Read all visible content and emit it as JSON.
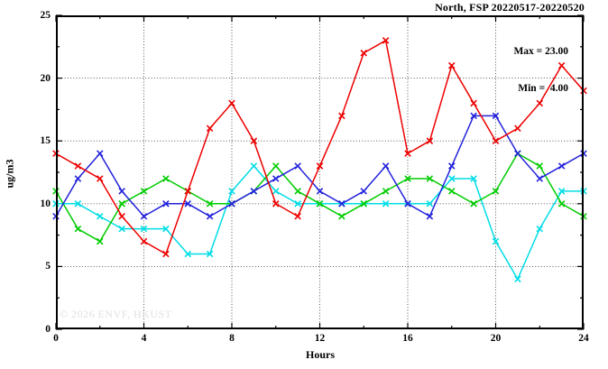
{
  "title": "North, FSP 20220517-20220520",
  "annotation": {
    "max_label": "Max = 23.00",
    "min_label": "Min =  4.00"
  },
  "watermark": "© 2026 ENVF, HKUST",
  "axes": {
    "xlabel": "Hours",
    "ylabel": "ug/m3",
    "x_tick_labels": [
      "0",
      "4",
      "8",
      "12",
      "16",
      "20",
      "24"
    ],
    "y_tick_labels": [
      "0",
      "5",
      "10",
      "15",
      "20",
      "25"
    ]
  },
  "chart_data": {
    "type": "line",
    "title": "North, FSP 20220517-20220520",
    "xlabel": "Hours",
    "ylabel": "ug/m3",
    "xlim": [
      0,
      24
    ],
    "ylim": [
      0,
      25
    ],
    "x_major_ticks": [
      0,
      4,
      8,
      12,
      16,
      20,
      24
    ],
    "x_minor_tick_step": 2,
    "y_major_ticks": [
      0,
      5,
      10,
      15,
      20,
      25
    ],
    "y_minor_tick_step": 2.5,
    "grid_vertical_at": [
      4,
      8,
      12,
      16,
      20
    ],
    "grid_horizontal_at": [
      5,
      10,
      15,
      20
    ],
    "grid_style": "dotted",
    "legend_position": "none",
    "marker": "x",
    "annotations": {
      "max": 23.0,
      "min": 4.0
    },
    "x": [
      0,
      1,
      2,
      3,
      4,
      5,
      6,
      7,
      8,
      9,
      10,
      11,
      12,
      13,
      14,
      15,
      16,
      17,
      18,
      19,
      20,
      21,
      22,
      23,
      24
    ],
    "series": [
      {
        "name": "red",
        "color": "#ee0000",
        "values": [
          14,
          13,
          12,
          9,
          7,
          6,
          11,
          16,
          18,
          15,
          10,
          9,
          13,
          17,
          22,
          23,
          14,
          15,
          21,
          18,
          15,
          16,
          18,
          21,
          19
        ]
      },
      {
        "name": "blue",
        "color": "#2222dd",
        "values": [
          9,
          12,
          14,
          11,
          9,
          10,
          10,
          9,
          10,
          11,
          12,
          13,
          11,
          10,
          11,
          13,
          10,
          9,
          13,
          17,
          17,
          14,
          12,
          13,
          14
        ]
      },
      {
        "name": "green",
        "color": "#00cc00",
        "values": [
          11,
          8,
          7,
          10,
          11,
          12,
          11,
          10,
          10,
          11,
          13,
          11,
          10,
          9,
          10,
          11,
          12,
          12,
          11,
          10,
          11,
          14,
          13,
          10,
          9
        ]
      },
      {
        "name": "cyan",
        "color": "#00dde6",
        "values": [
          10,
          10,
          9,
          8,
          8,
          8,
          6,
          6,
          11,
          13,
          11,
          10,
          10,
          10,
          10,
          10,
          10,
          10,
          12,
          12,
          7,
          4,
          8,
          11,
          11
        ]
      }
    ],
    "draw_order": [
      "cyan",
      "green",
      "blue",
      "red"
    ]
  }
}
